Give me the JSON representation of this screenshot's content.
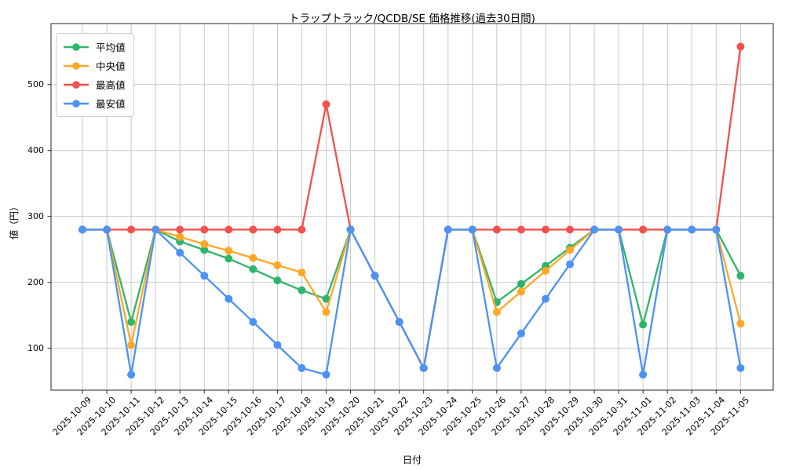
{
  "chart_data": {
    "type": "line",
    "title": "トラップトラック/QCDB/SE 価格推移(過去30日間)",
    "xlabel": "日付",
    "ylabel": "値（円）",
    "grid": true,
    "legend_position": "upper-left",
    "yticks": [
      100,
      200,
      300,
      400,
      500
    ],
    "ylim": [
      35,
      592
    ],
    "x_dates": [
      "2025-10-09",
      "2025-10-10",
      "2025-10-11",
      "2025-10-12",
      "2025-10-13",
      "2025-10-14",
      "2025-10-15",
      "2025-10-16",
      "2025-10-17",
      "2025-10-18",
      "2025-10-19",
      "2025-10-20",
      "2025-10-21",
      "2025-10-22",
      "2025-10-23",
      "2025-10-24",
      "2025-10-25",
      "2025-10-26",
      "2025-10-27",
      "2025-10-28",
      "2025-10-29",
      "2025-10-30",
      "2025-10-31",
      "2025-11-01",
      "2025-11-02",
      "2025-11-03",
      "2025-11-04",
      "2025-11-05"
    ],
    "series": [
      {
        "key": "mean",
        "name": "平均値",
        "color": "#2fb56b",
        "values": [
          280,
          280,
          140,
          280,
          262,
          249,
          236,
          220,
          203,
          188,
          175,
          280,
          210,
          140,
          70,
          280,
          280,
          170,
          197.5,
          225,
          252.5,
          280,
          280,
          136,
          280,
          280,
          280,
          210
        ]
      },
      {
        "key": "median",
        "name": "中央値",
        "color": "#ffa726",
        "values": [
          280,
          280,
          105,
          280,
          269,
          258,
          248,
          237,
          226,
          215,
          155,
          280,
          210,
          140,
          70,
          280,
          280,
          155,
          186,
          217.5,
          249,
          280,
          280,
          280,
          280,
          280,
          280,
          137.5
        ]
      },
      {
        "key": "max",
        "name": "最高値",
        "color": "#f4504c",
        "values": [
          280,
          280,
          280,
          280,
          280,
          280,
          280,
          280,
          280,
          280,
          470,
          280,
          210,
          140,
          70,
          280,
          280,
          280,
          280,
          280,
          280,
          280,
          280,
          280,
          280,
          280,
          280,
          557.5
        ]
      },
      {
        "key": "min",
        "name": "最安値",
        "color": "#4d92f5",
        "values": [
          280,
          280,
          60,
          280,
          245,
          210,
          175,
          140,
          105,
          70,
          60,
          280,
          210,
          140,
          70,
          280,
          280,
          70,
          122.5,
          175,
          227.5,
          280,
          280,
          60,
          280,
          280,
          280,
          70
        ]
      }
    ]
  }
}
